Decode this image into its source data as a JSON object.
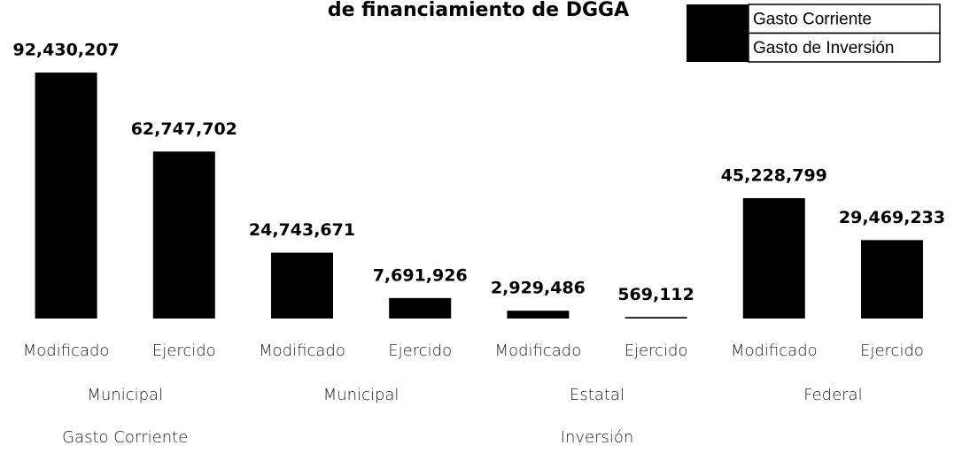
{
  "chart_data": {
    "type": "bar",
    "title": "de financiamiento de DGGA",
    "categories": [
      "Modificado",
      "Ejercido",
      "Modificado",
      "Ejercido",
      "Modificado",
      "Ejercido",
      "Modificado",
      "Ejercido"
    ],
    "subgroups": [
      "Municipal",
      "Municipal",
      "Estatal",
      "Federal"
    ],
    "series": [
      {
        "name": "Gasto Corriente",
        "group_label": "Gasto Corriente",
        "color": "#000000",
        "values": [
          92430207,
          62747702,
          null,
          null,
          null,
          null,
          null,
          null
        ],
        "value_labels": [
          "92,430,207",
          "62,747,702",
          null,
          null,
          null,
          null,
          null,
          null
        ]
      },
      {
        "name": "Gasto de Inversión",
        "group_label": "Inversión",
        "color": "#000000",
        "values": [
          null,
          null,
          24743671,
          7691926,
          2929486,
          569112,
          45228799,
          29469233
        ],
        "value_labels": [
          null,
          null,
          "24,743,671",
          "7,691,926",
          "2,929,486",
          "569,112",
          "45,228,799",
          "29,469,233"
        ]
      }
    ],
    "legend": "top-right"
  }
}
